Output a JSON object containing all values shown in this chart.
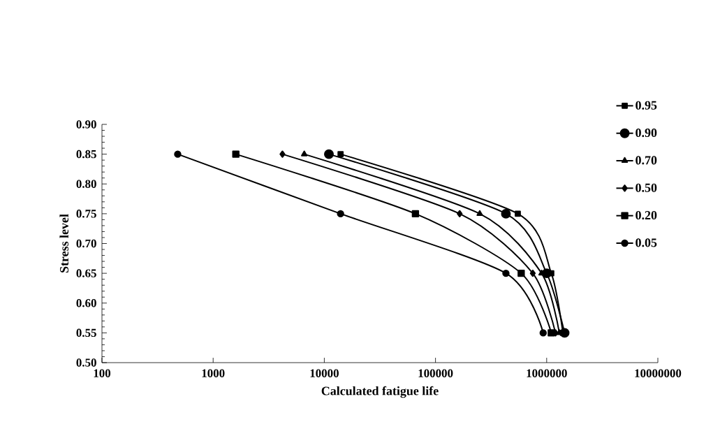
{
  "chart_data": {
    "type": "line",
    "xlabel": "Calculated fatigue life",
    "ylabel": "Stress level",
    "log": "x",
    "xlim": [
      100,
      10000000
    ],
    "ylim": [
      0.5,
      0.9
    ],
    "xticks": [
      100,
      1000,
      10000,
      100000,
      1000000,
      10000000
    ],
    "yticks": [
      {
        "value": 0.5,
        "label": "0.50"
      },
      {
        "value": 0.55,
        "label": "0.55"
      },
      {
        "value": 0.6,
        "label": "0.60"
      },
      {
        "value": 0.65,
        "label": "0.65"
      },
      {
        "value": 0.7,
        "label": "0.70"
      },
      {
        "value": 0.75,
        "label": "0.75"
      },
      {
        "value": 0.8,
        "label": "0.80"
      },
      {
        "value": 0.85,
        "label": "0.85"
      },
      {
        "value": 0.9,
        "label": "0.90"
      }
    ],
    "grid": false,
    "legend": "right",
    "line_style": "solid",
    "series": [
      {
        "name": "0.95",
        "color": "#000000",
        "marker": "square",
        "x": [
          14000,
          550000,
          1100000,
          1400000
        ],
        "values": [
          0.85,
          0.75,
          0.65,
          0.55
        ]
      },
      {
        "name": "0.90",
        "color": "#000000",
        "marker": "circle",
        "x": [
          11000,
          430000,
          1000000,
          1450000
        ],
        "values": [
          0.85,
          0.75,
          0.65,
          0.55
        ]
      },
      {
        "name": "0.70",
        "color": "#000000",
        "marker": "triangle",
        "x": [
          6600,
          250000,
          900000,
          1300000
        ],
        "values": [
          0.85,
          0.75,
          0.65,
          0.55
        ]
      },
      {
        "name": "0.50",
        "color": "#000000",
        "marker": "diamond",
        "x": [
          4200,
          165000,
          750000,
          1200000
        ],
        "values": [
          0.85,
          0.75,
          0.65,
          0.55
        ]
      },
      {
        "name": "0.20",
        "color": "#000000",
        "marker": "square",
        "x": [
          1600,
          66000,
          590000,
          1100000
        ],
        "values": [
          0.85,
          0.75,
          0.65,
          0.55
        ]
      },
      {
        "name": "0.05",
        "color": "#000000",
        "marker": "circle",
        "x": [
          480,
          14000,
          430000,
          930000
        ],
        "values": [
          0.85,
          0.75,
          0.65,
          0.55
        ]
      }
    ]
  }
}
